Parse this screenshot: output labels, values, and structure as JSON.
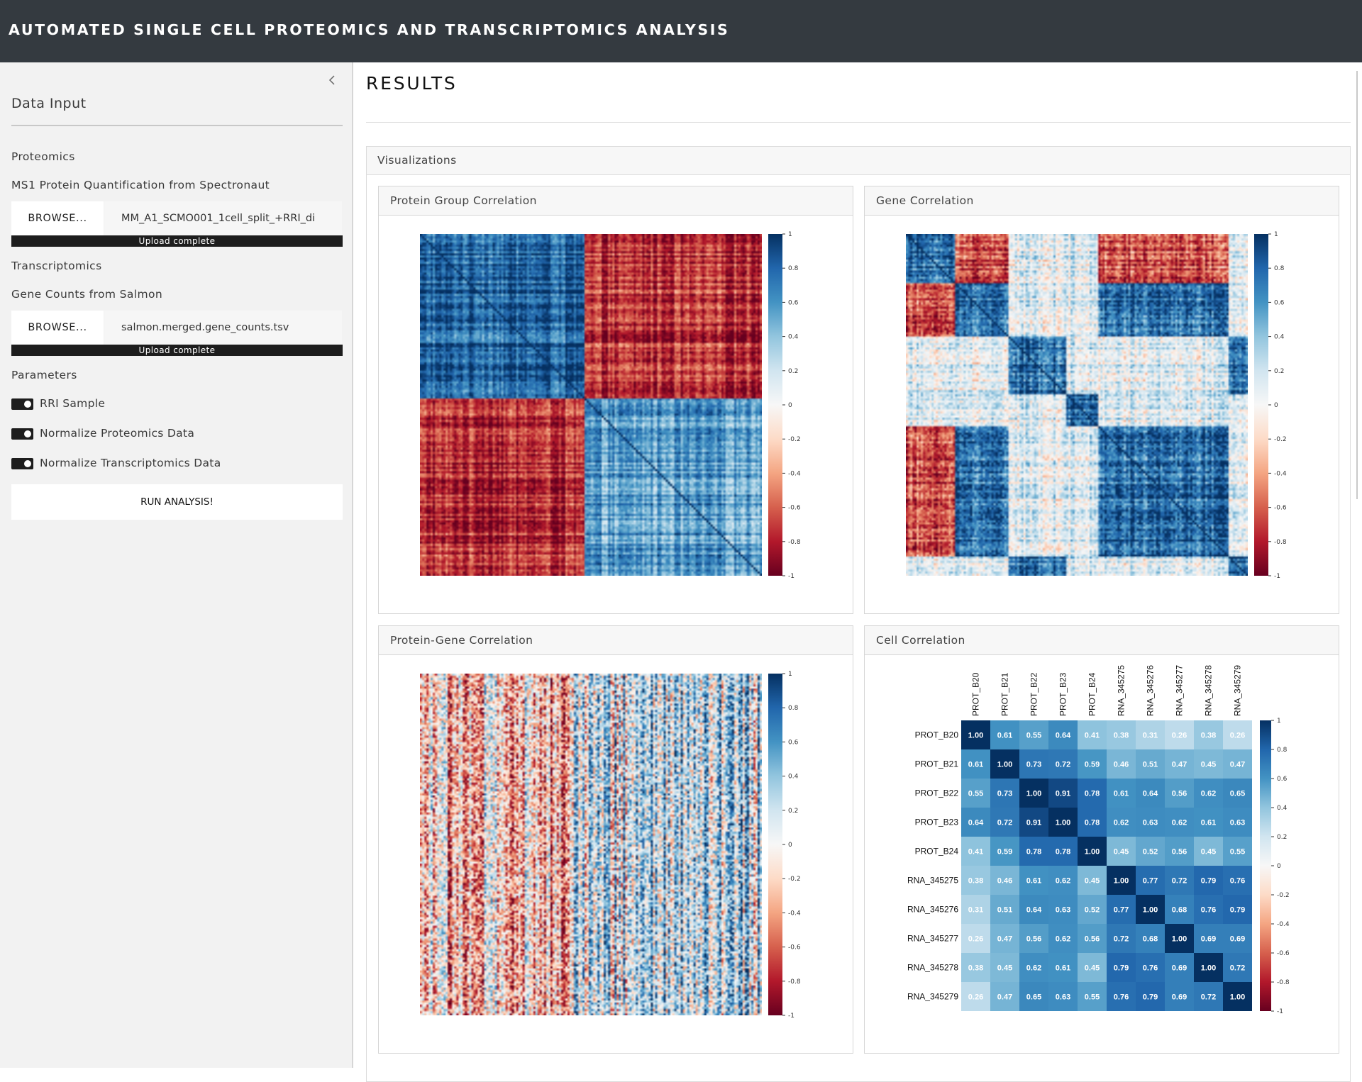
{
  "app": {
    "title": "AUTOMATED SINGLE CELL PROTEOMICS AND TRANSCRIPTOMICS ANALYSIS"
  },
  "sidebar": {
    "heading": "Data Input",
    "proteomics": {
      "section": "Proteomics",
      "label": "MS1 Protein Quantification from Spectronaut",
      "browse": "BROWSE...",
      "file": "MM_A1_SCMO001_1cell_split_+RRI_di",
      "progress": "Upload complete"
    },
    "transcriptomics": {
      "section": "Transcriptomics",
      "label": "Gene Counts from Salmon",
      "browse": "BROWSE...",
      "file": "salmon.merged.gene_counts.tsv",
      "progress": "Upload complete"
    },
    "parameters": {
      "section": "Parameters",
      "toggles": [
        {
          "label": "RRI Sample",
          "on": true
        },
        {
          "label": "Normalize Proteomics Data",
          "on": true
        },
        {
          "label": "Normalize Transcriptomics Data",
          "on": true
        }
      ]
    },
    "run": "RUN ANALYSIS!"
  },
  "main": {
    "title": "RESULTS",
    "visualizations": {
      "title": "Visualizations",
      "plots": [
        {
          "title": "Protein Group Correlation",
          "kind": "blocks"
        },
        {
          "title": "Gene Correlation",
          "kind": "clusters"
        },
        {
          "title": "Protein-Gene Correlation",
          "kind": "noise"
        },
        {
          "title": "Cell Correlation",
          "kind": "matrix"
        }
      ]
    }
  },
  "colorbar": {
    "ticks": [
      "1",
      "0.8",
      "0.6",
      "0.4",
      "0.2",
      "0",
      "-0.2",
      "-0.4",
      "-0.6",
      "-0.8",
      "-1"
    ],
    "colors": [
      "#67001f",
      "#b2182b",
      "#d6604d",
      "#f4a582",
      "#fddbc7",
      "#f7f7f7",
      "#d1e5f0",
      "#92c5de",
      "#4393c3",
      "#2166ac",
      "#053061"
    ]
  },
  "chart_data": {
    "type": "heatmap",
    "title": "Cell Correlation",
    "labels": [
      "PROT_B20",
      "PROT_B21",
      "PROT_B22",
      "PROT_B23",
      "PROT_B24",
      "RNA_345275",
      "RNA_345276",
      "RNA_345277",
      "RNA_345278",
      "RNA_345279"
    ],
    "matrix": [
      [
        1.0,
        0.61,
        0.55,
        0.64,
        0.41,
        0.38,
        0.31,
        0.26,
        0.38,
        0.26
      ],
      [
        0.61,
        1.0,
        0.73,
        0.72,
        0.59,
        0.46,
        0.51,
        0.47,
        0.45,
        0.47
      ],
      [
        0.55,
        0.73,
        1.0,
        0.91,
        0.78,
        0.61,
        0.64,
        0.56,
        0.62,
        0.65
      ],
      [
        0.64,
        0.72,
        0.91,
        1.0,
        0.78,
        0.62,
        0.63,
        0.62,
        0.61,
        0.63
      ],
      [
        0.41,
        0.59,
        0.78,
        0.78,
        1.0,
        0.45,
        0.52,
        0.56,
        0.45,
        0.55
      ],
      [
        0.38,
        0.46,
        0.61,
        0.62,
        0.45,
        1.0,
        0.77,
        0.72,
        0.79,
        0.76
      ],
      [
        0.31,
        0.51,
        0.64,
        0.63,
        0.52,
        0.77,
        1.0,
        0.68,
        0.76,
        0.79
      ],
      [
        0.26,
        0.47,
        0.56,
        0.62,
        0.56,
        0.72,
        0.68,
        1.0,
        0.69,
        0.69
      ],
      [
        0.38,
        0.45,
        0.62,
        0.61,
        0.45,
        0.79,
        0.76,
        0.69,
        1.0,
        0.72
      ],
      [
        0.26,
        0.47,
        0.65,
        0.63,
        0.55,
        0.76,
        0.79,
        0.69,
        0.72,
        1.0
      ]
    ],
    "value_range": [
      -1,
      1
    ],
    "legend": "right"
  }
}
